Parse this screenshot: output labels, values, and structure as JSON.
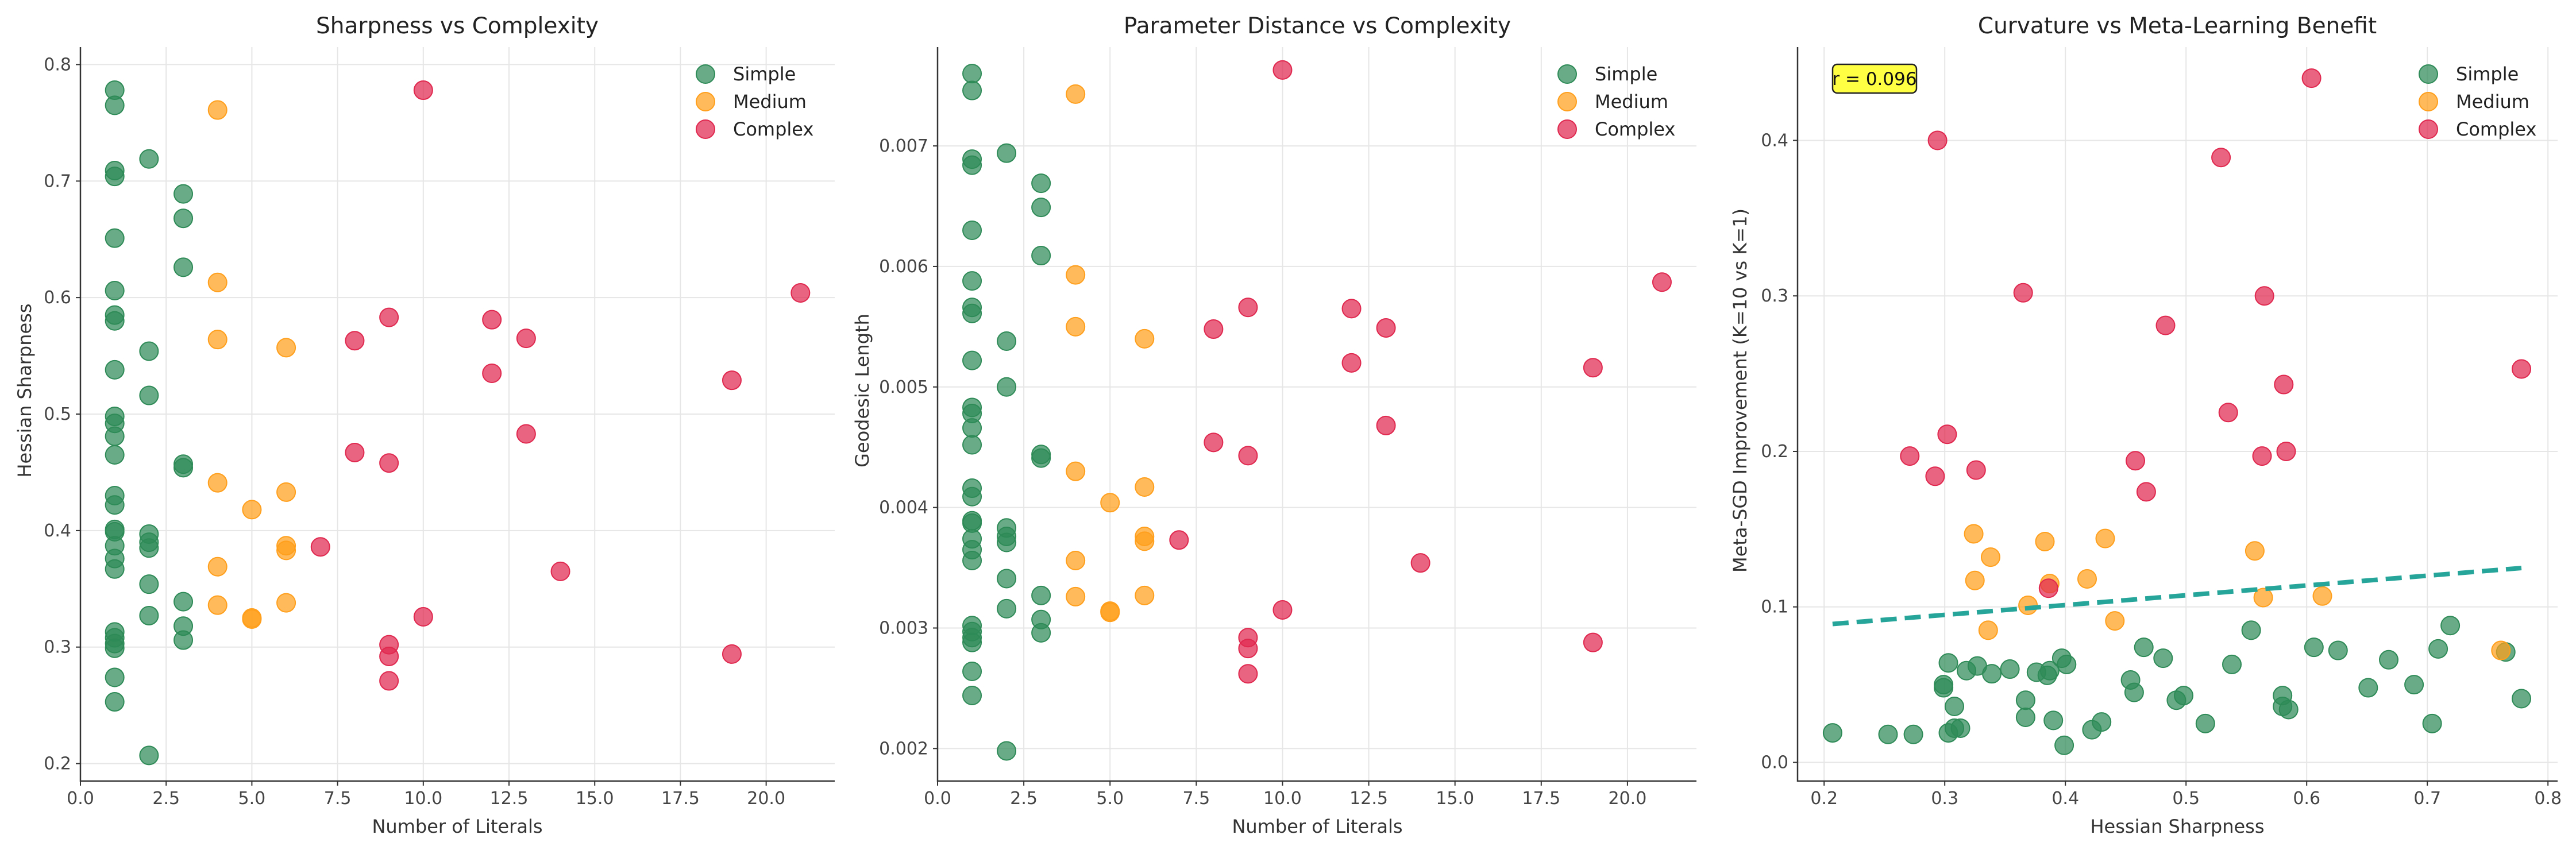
{
  "colors": {
    "Simple": "#2e8b57",
    "Medium": "#ff9f1c",
    "Complex": "#e0284f",
    "trend": "#26a69a",
    "annot_bg": "#ffff44"
  },
  "chart_data": [
    {
      "type": "scatter",
      "title": "Sharpness vs Complexity",
      "xlabel": "Number of Literals",
      "ylabel": "Hessian Sharpness",
      "xlim": [
        0,
        22
      ],
      "ylim": [
        0.185,
        0.815
      ],
      "xticks": [
        0,
        2.5,
        5,
        7.5,
        10,
        12.5,
        15,
        17.5,
        20
      ],
      "xtick_labels": [
        "0.0",
        "2.5",
        "5.0",
        "7.5",
        "10.0",
        "12.5",
        "15.0",
        "17.5",
        "20.0"
      ],
      "yticks": [
        0.2,
        0.3,
        0.4,
        0.5,
        0.6,
        0.7,
        0.8
      ],
      "ytick_labels": [
        "0.2",
        "0.3",
        "0.4",
        "0.5",
        "0.6",
        "0.7",
        "0.8"
      ],
      "grid": true,
      "legend_position": "top-right",
      "series": [
        {
          "name": "Simple",
          "points": [
            [
              1,
              0.778
            ],
            [
              1,
              0.765
            ],
            [
              1,
              0.709
            ],
            [
              1,
              0.704
            ],
            [
              1,
              0.651
            ],
            [
              1,
              0.606
            ],
            [
              1,
              0.585
            ],
            [
              1,
              0.58
            ],
            [
              1,
              0.538
            ],
            [
              1,
              0.498
            ],
            [
              1,
              0.492
            ],
            [
              1,
              0.481
            ],
            [
              1,
              0.465
            ],
            [
              1,
              0.43
            ],
            [
              1,
              0.422
            ],
            [
              1,
              0.401
            ],
            [
              1,
              0.399
            ],
            [
              1,
              0.387
            ],
            [
              1,
              0.376
            ],
            [
              1,
              0.367
            ],
            [
              1,
              0.313
            ],
            [
              1,
              0.308
            ],
            [
              1,
              0.303
            ],
            [
              1,
              0.299
            ],
            [
              1,
              0.274
            ],
            [
              1,
              0.253
            ],
            [
              2,
              0.719
            ],
            [
              2,
              0.554
            ],
            [
              2,
              0.516
            ],
            [
              2,
              0.397
            ],
            [
              2,
              0.39
            ],
            [
              2,
              0.385
            ],
            [
              2,
              0.354
            ],
            [
              2,
              0.327
            ],
            [
              2,
              0.207
            ],
            [
              3,
              0.689
            ],
            [
              3,
              0.668
            ],
            [
              3,
              0.626
            ],
            [
              3,
              0.457
            ],
            [
              3,
              0.454
            ],
            [
              3,
              0.339
            ],
            [
              3,
              0.318
            ],
            [
              3,
              0.306
            ]
          ]
        },
        {
          "name": "Medium",
          "points": [
            [
              4,
              0.761
            ],
            [
              4,
              0.613
            ],
            [
              4,
              0.564
            ],
            [
              4,
              0.441
            ],
            [
              4,
              0.369
            ],
            [
              4,
              0.336
            ],
            [
              5,
              0.418
            ],
            [
              5,
              0.325
            ],
            [
              5,
              0.324
            ],
            [
              6,
              0.557
            ],
            [
              6,
              0.433
            ],
            [
              6,
              0.387
            ],
            [
              6,
              0.383
            ],
            [
              6,
              0.338
            ]
          ]
        },
        {
          "name": "Complex",
          "points": [
            [
              7,
              0.386
            ],
            [
              8,
              0.563
            ],
            [
              8,
              0.467
            ],
            [
              9,
              0.583
            ],
            [
              9,
              0.458
            ],
            [
              9,
              0.302
            ],
            [
              9,
              0.292
            ],
            [
              9,
              0.271
            ],
            [
              10,
              0.778
            ],
            [
              10,
              0.326
            ],
            [
              12,
              0.581
            ],
            [
              12,
              0.535
            ],
            [
              13,
              0.565
            ],
            [
              13,
              0.483
            ],
            [
              14,
              0.365
            ],
            [
              19,
              0.529
            ],
            [
              19,
              0.294
            ],
            [
              21,
              0.604
            ]
          ]
        }
      ]
    },
    {
      "type": "scatter",
      "title": "Parameter Distance vs Complexity",
      "xlabel": "Number of Literals",
      "ylabel": "Geodesic Length",
      "xlim": [
        0,
        22
      ],
      "ylim": [
        0.00173,
        0.00782
      ],
      "xticks": [
        0,
        2.5,
        5,
        7.5,
        10,
        12.5,
        15,
        17.5,
        20
      ],
      "xtick_labels": [
        "0.0",
        "2.5",
        "5.0",
        "7.5",
        "10.0",
        "12.5",
        "15.0",
        "17.5",
        "20.0"
      ],
      "yticks": [
        0.002,
        0.003,
        0.004,
        0.005,
        0.006,
        0.007
      ],
      "ytick_labels": [
        "0.002",
        "0.003",
        "0.004",
        "0.005",
        "0.006",
        "0.007"
      ],
      "grid": true,
      "legend_position": "top-right",
      "series": [
        {
          "name": "Simple",
          "points": [
            [
              1,
              0.0076
            ],
            [
              1,
              0.00746
            ],
            [
              1,
              0.00689
            ],
            [
              1,
              0.00684
            ],
            [
              1,
              0.0063
            ],
            [
              1,
              0.00588
            ],
            [
              1,
              0.00566
            ],
            [
              1,
              0.00561
            ],
            [
              1,
              0.00522
            ],
            [
              1,
              0.00483
            ],
            [
              1,
              0.00478
            ],
            [
              1,
              0.00466
            ],
            [
              1,
              0.00452
            ],
            [
              1,
              0.00416
            ],
            [
              1,
              0.00409
            ],
            [
              1,
              0.00389
            ],
            [
              1,
              0.00387
            ],
            [
              1,
              0.00374
            ],
            [
              1,
              0.00365
            ],
            [
              1,
              0.00356
            ],
            [
              1,
              0.00302
            ],
            [
              1,
              0.00297
            ],
            [
              1,
              0.00292
            ],
            [
              1,
              0.00288
            ],
            [
              1,
              0.00264
            ],
            [
              1,
              0.00244
            ],
            [
              2,
              0.00694
            ],
            [
              2,
              0.00538
            ],
            [
              2,
              0.005
            ],
            [
              2,
              0.00383
            ],
            [
              2,
              0.00376
            ],
            [
              2,
              0.00371
            ],
            [
              2,
              0.00341
            ],
            [
              2,
              0.00316
            ],
            [
              2,
              0.00198
            ],
            [
              3,
              0.00669
            ],
            [
              3,
              0.00649
            ],
            [
              3,
              0.00609
            ],
            [
              3,
              0.00444
            ],
            [
              3,
              0.00441
            ],
            [
              3,
              0.00327
            ],
            [
              3,
              0.00307
            ],
            [
              3,
              0.00296
            ]
          ]
        },
        {
          "name": "Medium",
          "points": [
            [
              4,
              0.00743
            ],
            [
              4,
              0.00593
            ],
            [
              4,
              0.0055
            ],
            [
              4,
              0.0043
            ],
            [
              4,
              0.00356
            ],
            [
              4,
              0.00326
            ],
            [
              5,
              0.00404
            ],
            [
              5,
              0.00314
            ],
            [
              5,
              0.00313
            ],
            [
              6,
              0.0054
            ],
            [
              6,
              0.00417
            ],
            [
              6,
              0.00376
            ],
            [
              6,
              0.00372
            ],
            [
              6,
              0.00327
            ]
          ]
        },
        {
          "name": "Complex",
          "points": [
            [
              7,
              0.00373
            ],
            [
              8,
              0.00548
            ],
            [
              8,
              0.00454
            ],
            [
              9,
              0.00566
            ],
            [
              9,
              0.00443
            ],
            [
              9,
              0.00292
            ],
            [
              9,
              0.00283
            ],
            [
              9,
              0.00262
            ],
            [
              10,
              0.00763
            ],
            [
              10,
              0.00315
            ],
            [
              12,
              0.00565
            ],
            [
              12,
              0.0052
            ],
            [
              13,
              0.00549
            ],
            [
              13,
              0.00468
            ],
            [
              14,
              0.00354
            ],
            [
              19,
              0.00516
            ],
            [
              19,
              0.00288
            ],
            [
              21,
              0.00587
            ]
          ]
        }
      ]
    },
    {
      "type": "scatter",
      "title": "Curvature vs Meta-Learning Benefit",
      "xlabel": "Hessian Sharpness",
      "ylabel": "Meta-SGD Improvement (K=10 vs K=1)",
      "xlim": [
        0.178,
        0.808
      ],
      "ylim": [
        -0.012,
        0.46
      ],
      "xticks": [
        0.2,
        0.3,
        0.4,
        0.5,
        0.6,
        0.7,
        0.8
      ],
      "xtick_labels": [
        "0.2",
        "0.3",
        "0.4",
        "0.5",
        "0.6",
        "0.7",
        "0.8"
      ],
      "yticks": [
        0.0,
        0.1,
        0.2,
        0.3,
        0.4
      ],
      "ytick_labels": [
        "0.0",
        "0.1",
        "0.2",
        "0.3",
        "0.4"
      ],
      "grid": true,
      "legend_position": "top-right",
      "annotation": "r = 0.096",
      "trend_line": {
        "x": [
          0.207,
          0.778
        ],
        "y": [
          0.089,
          0.125
        ]
      },
      "series": [
        {
          "name": "Simple",
          "points": [
            [
              0.207,
              0.019
            ],
            [
              0.253,
              0.018
            ],
            [
              0.274,
              0.018
            ],
            [
              0.299,
              0.05
            ],
            [
              0.303,
              0.019
            ],
            [
              0.299,
              0.048
            ],
            [
              0.303,
              0.064
            ],
            [
              0.308,
              0.036
            ],
            [
              0.308,
              0.022
            ],
            [
              0.313,
              0.022
            ],
            [
              0.318,
              0.059
            ],
            [
              0.327,
              0.062
            ],
            [
              0.339,
              0.057
            ],
            [
              0.354,
              0.06
            ],
            [
              0.367,
              0.04
            ],
            [
              0.367,
              0.029
            ],
            [
              0.376,
              0.058
            ],
            [
              0.385,
              0.056
            ],
            [
              0.387,
              0.059
            ],
            [
              0.39,
              0.027
            ],
            [
              0.397,
              0.067
            ],
            [
              0.399,
              0.011
            ],
            [
              0.401,
              0.063
            ],
            [
              0.422,
              0.021
            ],
            [
              0.43,
              0.026
            ],
            [
              0.454,
              0.053
            ],
            [
              0.457,
              0.045
            ],
            [
              0.465,
              0.074
            ],
            [
              0.481,
              0.067
            ],
            [
              0.492,
              0.04
            ],
            [
              0.498,
              0.043
            ],
            [
              0.516,
              0.025
            ],
            [
              0.538,
              0.063
            ],
            [
              0.554,
              0.085
            ],
            [
              0.58,
              0.036
            ],
            [
              0.585,
              0.034
            ],
            [
              0.58,
              0.043
            ],
            [
              0.606,
              0.074
            ],
            [
              0.626,
              0.072
            ],
            [
              0.651,
              0.048
            ],
            [
              0.668,
              0.066
            ],
            [
              0.689,
              0.05
            ],
            [
              0.704,
              0.025
            ],
            [
              0.709,
              0.073
            ],
            [
              0.719,
              0.088
            ],
            [
              0.765,
              0.071
            ],
            [
              0.778,
              0.041
            ]
          ]
        },
        {
          "name": "Medium",
          "points": [
            [
              0.324,
              0.147
            ],
            [
              0.325,
              0.117
            ],
            [
              0.336,
              0.085
            ],
            [
              0.338,
              0.132
            ],
            [
              0.369,
              0.101
            ],
            [
              0.383,
              0.142
            ],
            [
              0.387,
              0.115
            ],
            [
              0.418,
              0.118
            ],
            [
              0.433,
              0.144
            ],
            [
              0.441,
              0.091
            ],
            [
              0.557,
              0.136
            ],
            [
              0.564,
              0.106
            ],
            [
              0.613,
              0.107
            ],
            [
              0.761,
              0.072
            ]
          ]
        },
        {
          "name": "Complex",
          "points": [
            [
              0.271,
              0.197
            ],
            [
              0.292,
              0.184
            ],
            [
              0.294,
              0.4
            ],
            [
              0.302,
              0.211
            ],
            [
              0.326,
              0.188
            ],
            [
              0.365,
              0.302
            ],
            [
              0.386,
              0.112
            ],
            [
              0.458,
              0.194
            ],
            [
              0.467,
              0.174
            ],
            [
              0.483,
              0.281
            ],
            [
              0.529,
              0.389
            ],
            [
              0.535,
              0.225
            ],
            [
              0.563,
              0.197
            ],
            [
              0.565,
              0.3
            ],
            [
              0.581,
              0.243
            ],
            [
              0.583,
              0.2
            ],
            [
              0.604,
              0.44
            ],
            [
              0.778,
              0.253
            ]
          ]
        }
      ]
    }
  ]
}
